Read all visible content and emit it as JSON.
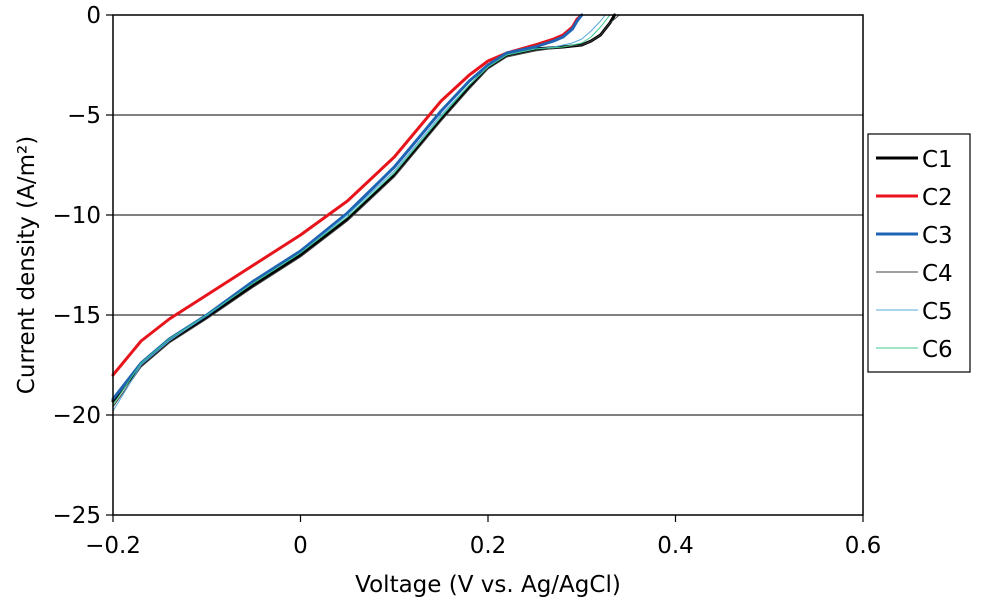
{
  "chart_data": {
    "type": "line",
    "xlabel": "Voltage (V vs. Ag/AgCl)",
    "ylabel": "Current density (A/m²)",
    "xlim": [
      -0.2,
      0.6
    ],
    "ylim": [
      -25,
      0
    ],
    "xticks": [
      -0.2,
      0,
      0.2,
      0.4,
      0.6
    ],
    "xtick_labels": [
      "−0.2",
      "0",
      "0.2",
      "0.4",
      "0.6"
    ],
    "yticks": [
      0,
      -5,
      -10,
      -15,
      -20,
      -25
    ],
    "ytick_labels": [
      "0",
      "−5",
      "−10",
      "−15",
      "−20",
      "−25"
    ],
    "grid": "horizontal",
    "legend": "right",
    "series": [
      {
        "name": "C1",
        "color": "#000000",
        "width": 3,
        "x": [
          -0.2,
          -0.17,
          -0.14,
          -0.1,
          -0.05,
          0,
          0.05,
          0.1,
          0.15,
          0.18,
          0.2,
          0.22,
          0.25,
          0.28,
          0.3,
          0.31,
          0.32,
          0.33,
          0.335
        ],
        "y": [
          -19.3,
          -17.5,
          -16.3,
          -15.1,
          -13.5,
          -12.0,
          -10.2,
          -8.0,
          -5.2,
          -3.6,
          -2.6,
          -2.0,
          -1.7,
          -1.6,
          -1.5,
          -1.3,
          -1.0,
          -0.4,
          0
        ]
      },
      {
        "name": "C2",
        "color": "#e8141c",
        "width": 3,
        "x": [
          -0.2,
          -0.17,
          -0.14,
          -0.1,
          -0.05,
          0,
          0.05,
          0.1,
          0.15,
          0.18,
          0.2,
          0.22,
          0.25,
          0.27,
          0.28,
          0.29,
          0.295,
          0.3
        ],
        "y": [
          -18.0,
          -16.3,
          -15.2,
          -14.0,
          -12.5,
          -11.0,
          -9.3,
          -7.1,
          -4.3,
          -3.0,
          -2.3,
          -1.9,
          -1.5,
          -1.2,
          -1.0,
          -0.6,
          -0.2,
          0
        ]
      },
      {
        "name": "C3",
        "color": "#1f64b4",
        "width": 3,
        "x": [
          -0.2,
          -0.17,
          -0.14,
          -0.1,
          -0.05,
          0,
          0.05,
          0.1,
          0.15,
          0.18,
          0.2,
          0.22,
          0.25,
          0.27,
          0.28,
          0.29,
          0.295,
          0.3
        ],
        "y": [
          -19.2,
          -17.4,
          -16.2,
          -15.0,
          -13.3,
          -11.8,
          -9.9,
          -7.6,
          -4.8,
          -3.3,
          -2.5,
          -1.9,
          -1.6,
          -1.3,
          -1.1,
          -0.7,
          -0.3,
          0
        ]
      },
      {
        "name": "C4",
        "color": "#404040",
        "width": 1,
        "x": [
          -0.2,
          -0.17,
          -0.14,
          -0.1,
          -0.05,
          0,
          0.05,
          0.1,
          0.15,
          0.18,
          0.2,
          0.22,
          0.25,
          0.28,
          0.3,
          0.31,
          0.32,
          0.33,
          0.34
        ],
        "y": [
          -19.6,
          -17.6,
          -16.4,
          -15.2,
          -13.6,
          -12.1,
          -10.3,
          -8.1,
          -5.3,
          -3.7,
          -2.7,
          -2.1,
          -1.8,
          -1.6,
          -1.5,
          -1.3,
          -1.0,
          -0.4,
          0
        ]
      },
      {
        "name": "C5",
        "color": "#5aa8dc",
        "width": 1,
        "x": [
          -0.2,
          -0.17,
          -0.14,
          -0.1,
          -0.05,
          0,
          0.05,
          0.1,
          0.15,
          0.18,
          0.2,
          0.22,
          0.25,
          0.27,
          0.29,
          0.3,
          0.31,
          0.32,
          0.325
        ],
        "y": [
          -19.8,
          -17.5,
          -16.3,
          -15.0,
          -13.4,
          -11.9,
          -10.0,
          -7.8,
          -5.0,
          -3.5,
          -2.6,
          -2.0,
          -1.7,
          -1.6,
          -1.4,
          -1.2,
          -0.8,
          -0.3,
          0
        ]
      },
      {
        "name": "C6",
        "color": "#3cc88c",
        "width": 1,
        "x": [
          -0.2,
          -0.17,
          -0.14,
          -0.1,
          -0.05,
          0,
          0.05,
          0.1,
          0.15,
          0.18,
          0.2,
          0.22,
          0.25,
          0.28,
          0.3,
          0.31,
          0.32,
          0.33
        ],
        "y": [
          -19.5,
          -17.4,
          -16.2,
          -15.0,
          -13.4,
          -11.9,
          -10.1,
          -7.9,
          -5.1,
          -3.5,
          -2.6,
          -2.0,
          -1.7,
          -1.6,
          -1.4,
          -1.1,
          -0.6,
          0
        ]
      }
    ]
  }
}
